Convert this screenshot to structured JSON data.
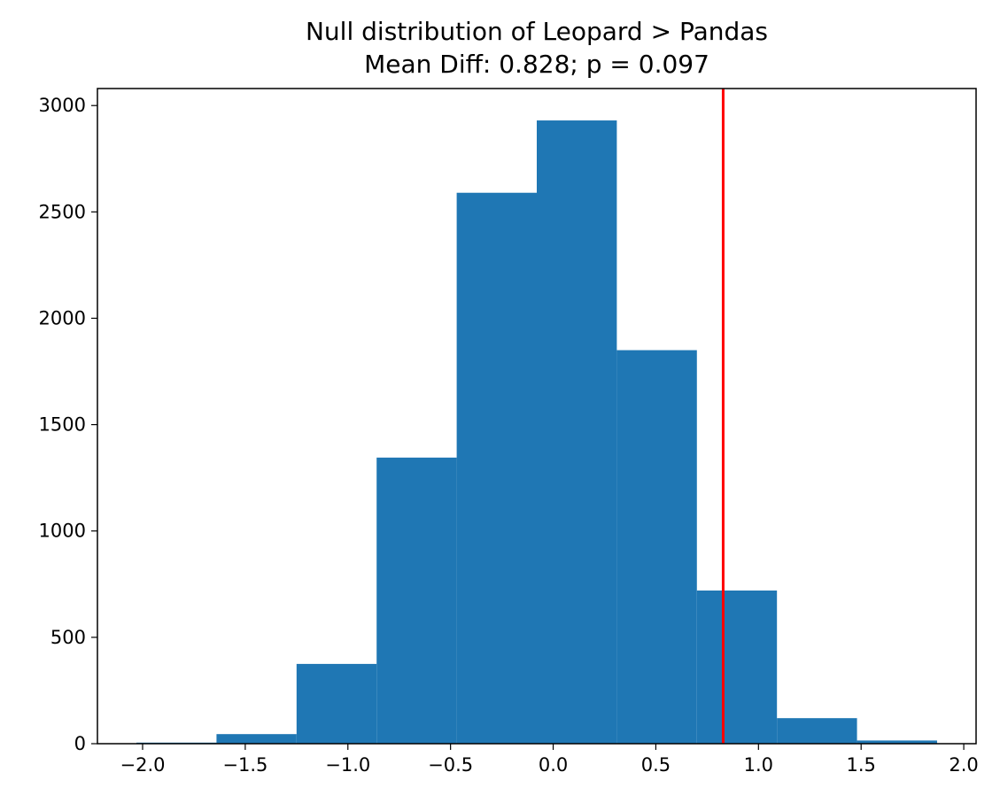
{
  "chart_data": {
    "type": "histogram",
    "title": "Null distribution of Leopard > Pandas",
    "subtitle": "Mean Diff: 0.828; p = 0.097",
    "xlabel": "",
    "ylabel": "",
    "xlim": [
      -2.22,
      2.06
    ],
    "ylim": [
      0,
      3080
    ],
    "grid": false,
    "bar_color": "#1f77b4",
    "bins": [
      {
        "x0": -2.03,
        "x1": -1.64,
        "count": 5
      },
      {
        "x0": -1.64,
        "x1": -1.25,
        "count": 45
      },
      {
        "x0": -1.25,
        "x1": -0.86,
        "count": 375
      },
      {
        "x0": -0.86,
        "x1": -0.47,
        "count": 1345
      },
      {
        "x0": -0.47,
        "x1": -0.08,
        "count": 2590
      },
      {
        "x0": -0.08,
        "x1": 0.31,
        "count": 2930
      },
      {
        "x0": 0.31,
        "x1": 0.7,
        "count": 1850
      },
      {
        "x0": 0.7,
        "x1": 1.09,
        "count": 720
      },
      {
        "x0": 1.09,
        "x1": 1.48,
        "count": 120
      },
      {
        "x0": 1.48,
        "x1": 1.87,
        "count": 15
      }
    ],
    "vline": {
      "x": 0.828,
      "color": "#ff0000"
    },
    "x_ticks": [
      {
        "value": -2.0,
        "label": "−2.0"
      },
      {
        "value": -1.5,
        "label": "−1.5"
      },
      {
        "value": -1.0,
        "label": "−1.0"
      },
      {
        "value": -0.5,
        "label": "−0.5"
      },
      {
        "value": 0.0,
        "label": "0.0"
      },
      {
        "value": 0.5,
        "label": "0.5"
      },
      {
        "value": 1.0,
        "label": "1.0"
      },
      {
        "value": 1.5,
        "label": "1.5"
      },
      {
        "value": 2.0,
        "label": "2.0"
      }
    ],
    "y_ticks": [
      {
        "value": 0,
        "label": "0"
      },
      {
        "value": 500,
        "label": "500"
      },
      {
        "value": 1000,
        "label": "1000"
      },
      {
        "value": 1500,
        "label": "1500"
      },
      {
        "value": 2000,
        "label": "2000"
      },
      {
        "value": 2500,
        "label": "2500"
      },
      {
        "value": 3000,
        "label": "3000"
      }
    ]
  }
}
